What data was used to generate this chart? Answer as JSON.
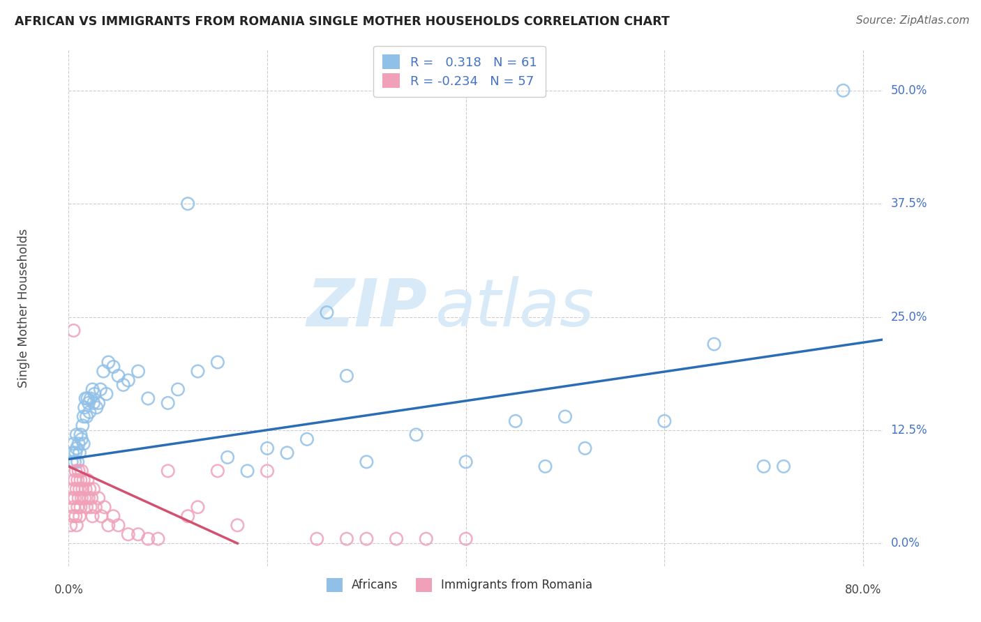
{
  "title": "AFRICAN VS IMMIGRANTS FROM ROMANIA SINGLE MOTHER HOUSEHOLDS CORRELATION CHART",
  "source": "Source: ZipAtlas.com",
  "ylabel": "Single Mother Households",
  "africans_R": 0.318,
  "africans_N": 61,
  "romania_R": -0.234,
  "romania_N": 57,
  "africans_color": "#90C0E8",
  "africans_edge_color": "#90C0E8",
  "africans_line_color": "#2A6DB5",
  "romania_color": "#F0A0B8",
  "romania_edge_color": "#F0A0B8",
  "romania_line_color": "#D45070",
  "watermark_color": "#D8EAF8",
  "grid_color": "#CCCCCC",
  "ytick_color": "#4472C4",
  "title_color": "#222222",
  "source_color": "#666666",
  "ylabel_color": "#444444",
  "xlim": [
    0.0,
    0.82
  ],
  "ylim": [
    -0.025,
    0.545
  ],
  "ytick_vals": [
    0.0,
    0.125,
    0.25,
    0.375,
    0.5
  ],
  "ytick_labels": [
    "0.0%",
    "12.5%",
    "25.0%",
    "37.5%",
    "50.0%"
  ],
  "xtick_vals": [
    0.0,
    0.2,
    0.4,
    0.6,
    0.8
  ],
  "xtick_show": [
    0.0,
    0.8
  ],
  "xtick_labels_show": [
    "0.0%",
    "80.0%"
  ],
  "africans_line_x0": 0.0,
  "africans_line_y0": 0.093,
  "africans_line_x1": 0.82,
  "africans_line_y1": 0.225,
  "romania_line_x0": 0.0,
  "romania_line_y0": 0.085,
  "romania_line_x1": 0.17,
  "romania_line_y1": 0.0,
  "africans_x": [
    0.003,
    0.004,
    0.005,
    0.006,
    0.007,
    0.008,
    0.008,
    0.009,
    0.01,
    0.011,
    0.012,
    0.013,
    0.014,
    0.015,
    0.015,
    0.016,
    0.017,
    0.018,
    0.019,
    0.02,
    0.021,
    0.022,
    0.024,
    0.025,
    0.026,
    0.028,
    0.03,
    0.032,
    0.035,
    0.038,
    0.04,
    0.045,
    0.05,
    0.055,
    0.06,
    0.07,
    0.08,
    0.1,
    0.11,
    0.12,
    0.13,
    0.15,
    0.16,
    0.18,
    0.2,
    0.22,
    0.24,
    0.26,
    0.28,
    0.3,
    0.35,
    0.4,
    0.45,
    0.48,
    0.5,
    0.52,
    0.6,
    0.65,
    0.7,
    0.72,
    0.78
  ],
  "africans_y": [
    0.09,
    0.1,
    0.11,
    0.09,
    0.1,
    0.12,
    0.105,
    0.09,
    0.11,
    0.1,
    0.12,
    0.115,
    0.13,
    0.11,
    0.14,
    0.15,
    0.16,
    0.14,
    0.16,
    0.155,
    0.145,
    0.16,
    0.17,
    0.155,
    0.165,
    0.15,
    0.155,
    0.17,
    0.19,
    0.165,
    0.2,
    0.195,
    0.185,
    0.175,
    0.18,
    0.19,
    0.16,
    0.155,
    0.17,
    0.375,
    0.19,
    0.2,
    0.095,
    0.08,
    0.105,
    0.1,
    0.115,
    0.255,
    0.185,
    0.09,
    0.12,
    0.09,
    0.135,
    0.085,
    0.14,
    0.105,
    0.135,
    0.22,
    0.085,
    0.085,
    0.5
  ],
  "romania_x": [
    0.002,
    0.003,
    0.004,
    0.005,
    0.005,
    0.006,
    0.006,
    0.007,
    0.007,
    0.008,
    0.008,
    0.009,
    0.009,
    0.01,
    0.01,
    0.011,
    0.011,
    0.012,
    0.012,
    0.013,
    0.013,
    0.014,
    0.015,
    0.016,
    0.017,
    0.018,
    0.019,
    0.02,
    0.021,
    0.022,
    0.023,
    0.024,
    0.025,
    0.027,
    0.03,
    0.033,
    0.036,
    0.04,
    0.045,
    0.05,
    0.06,
    0.07,
    0.08,
    0.09,
    0.1,
    0.12,
    0.13,
    0.15,
    0.17,
    0.2,
    0.25,
    0.28,
    0.3,
    0.33,
    0.36,
    0.4,
    0.005
  ],
  "romania_y": [
    0.02,
    0.05,
    0.03,
    0.06,
    0.04,
    0.07,
    0.05,
    0.08,
    0.03,
    0.06,
    0.02,
    0.07,
    0.04,
    0.08,
    0.05,
    0.06,
    0.03,
    0.07,
    0.04,
    0.08,
    0.05,
    0.06,
    0.07,
    0.05,
    0.06,
    0.04,
    0.07,
    0.05,
    0.06,
    0.04,
    0.05,
    0.03,
    0.06,
    0.04,
    0.05,
    0.03,
    0.04,
    0.02,
    0.03,
    0.02,
    0.01,
    0.01,
    0.005,
    0.005,
    0.08,
    0.03,
    0.04,
    0.08,
    0.02,
    0.08,
    0.005,
    0.005,
    0.005,
    0.005,
    0.005,
    0.005,
    0.235
  ]
}
